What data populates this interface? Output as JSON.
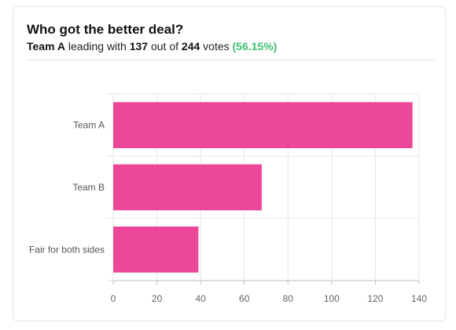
{
  "header": {
    "title": "Who got the better deal?",
    "leader": "Team A",
    "text_leading": "leading with",
    "leader_votes": "137",
    "text_out_of": "out of",
    "total_votes": "244",
    "text_votes": "votes",
    "percent": "(56.15%)"
  },
  "colors": {
    "bar": "#ec4899",
    "percent": "#3dbf6e",
    "grid": "#e6e6e9"
  },
  "chart_data": {
    "type": "bar",
    "orientation": "horizontal",
    "title": "",
    "xlabel": "",
    "ylabel": "",
    "categories": [
      "Team A",
      "Team B",
      "Fair for both sides"
    ],
    "values": [
      137,
      68,
      39
    ],
    "xlim": [
      0,
      140
    ],
    "x_ticks": [
      0,
      20,
      40,
      60,
      80,
      100,
      120,
      140
    ],
    "grid": true,
    "legend": "none"
  }
}
